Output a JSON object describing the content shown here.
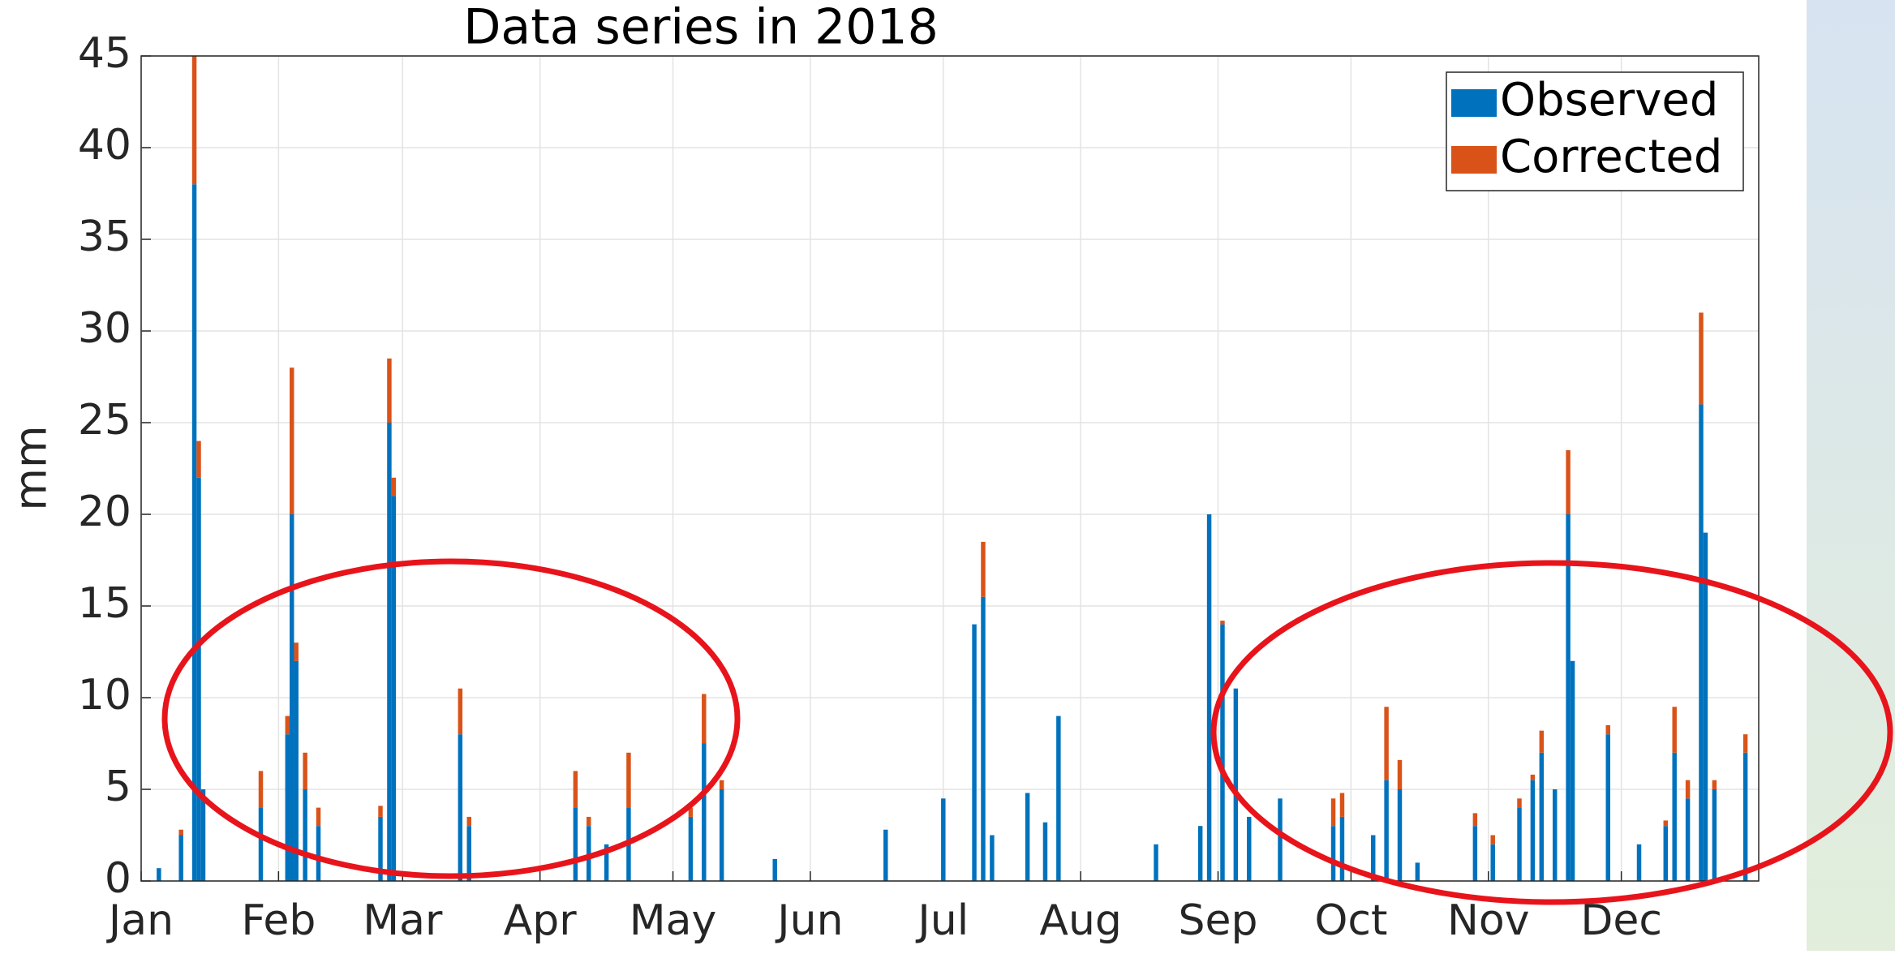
{
  "chart_data": {
    "type": "bar",
    "stacked": true,
    "title": "Data series in 2018",
    "y_label": "mm",
    "x": [
      5,
      10,
      13,
      14,
      15,
      28,
      34,
      35,
      36,
      38,
      41,
      55,
      57,
      58,
      73,
      75,
      99,
      102,
      106,
      111,
      125,
      128,
      132,
      144,
      169,
      182,
      189,
      191,
      193,
      201,
      205,
      208,
      230,
      240,
      242,
      245,
      248,
      251,
      258,
      270,
      272,
      279,
      282,
      285,
      289,
      302,
      306,
      312,
      315,
      317,
      320,
      323,
      324,
      332,
      339,
      345,
      347,
      350,
      353,
      354,
      356,
      363
    ],
    "series": [
      {
        "name": "Observed",
        "color": "#0072bd",
        "values": [
          0.7,
          2.5,
          38,
          22,
          5,
          4,
          8,
          20,
          12,
          5,
          3,
          3.5,
          25,
          21,
          8,
          3,
          4,
          3,
          2,
          4,
          3.5,
          7.5,
          5,
          1.2,
          2.8,
          4.5,
          14,
          15.5,
          2.5,
          4.8,
          3.2,
          9,
          2,
          3,
          20,
          14,
          10.5,
          3.5,
          4.5,
          3,
          3.5,
          2.5,
          5.5,
          5,
          1,
          3,
          2,
          4,
          5.5,
          7,
          5,
          20,
          12,
          8,
          2,
          3,
          7,
          4.5,
          26,
          19,
          5,
          7
        ]
      },
      {
        "name": "Corrected",
        "color": "#d95319",
        "values": [
          0,
          0.3,
          7,
          2,
          0,
          2,
          1,
          8,
          1,
          2,
          1,
          0.6,
          3.5,
          1,
          2.5,
          0.5,
          2,
          0.5,
          0,
          3,
          0.5,
          2.7,
          0.5,
          0,
          0,
          0,
          0,
          3,
          0,
          0,
          0,
          0,
          0,
          0,
          0,
          0.2,
          0,
          0,
          0,
          1.5,
          1.3,
          0,
          4,
          1.6,
          0,
          0.7,
          0.5,
          0.5,
          0.3,
          1.2,
          0,
          3.5,
          0,
          0.5,
          0,
          0.3,
          2.5,
          1,
          5,
          0,
          0.5,
          1
        ]
      }
    ],
    "xlim": [
      1,
      366
    ],
    "xticks": [
      {
        "value": 1,
        "label": "Jan"
      },
      {
        "value": 32,
        "label": "Feb"
      },
      {
        "value": 60,
        "label": "Mar"
      },
      {
        "value": 91,
        "label": "Apr"
      },
      {
        "value": 121,
        "label": "May"
      },
      {
        "value": 152,
        "label": "Jun"
      },
      {
        "value": 182,
        "label": "Jul"
      },
      {
        "value": 213,
        "label": "Aug"
      },
      {
        "value": 244,
        "label": "Sep"
      },
      {
        "value": 274,
        "label": "Oct"
      },
      {
        "value": 305,
        "label": "Nov"
      },
      {
        "value": 335,
        "label": "Dec"
      }
    ],
    "ylim": [
      0,
      45
    ],
    "yticks": [
      0,
      5,
      10,
      15,
      20,
      25,
      30,
      35,
      40,
      45
    ],
    "grid": true,
    "legend": "upper right"
  }
}
